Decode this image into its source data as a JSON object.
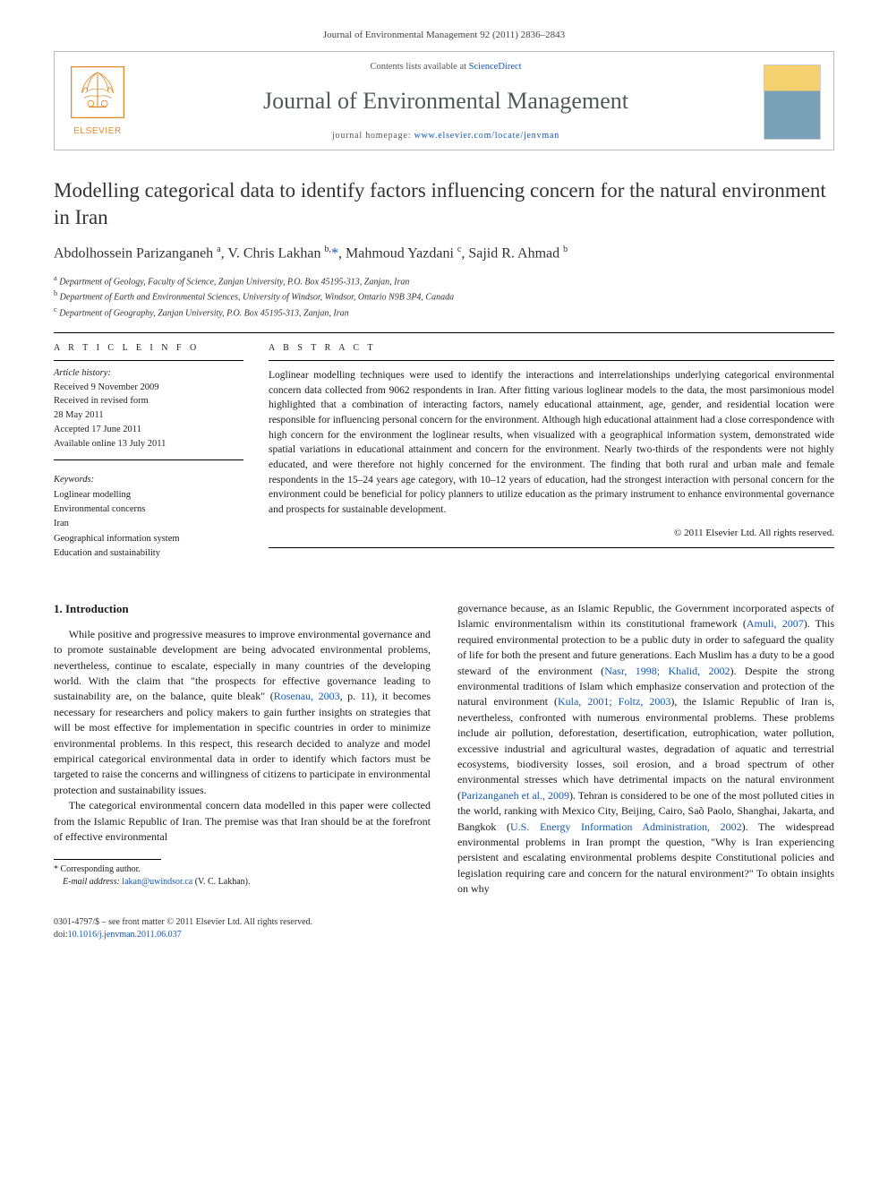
{
  "running_head": "Journal of Environmental Management 92 (2011) 2836–2843",
  "masthead": {
    "contents_prefix": "Contents lists available at ",
    "contents_link": "ScienceDirect",
    "journal_name": "Journal of Environmental Management",
    "homepage_prefix": "journal homepage: ",
    "homepage_url": "www.elsevier.com/locate/jenvman",
    "publisher_word": "ELSEVIER"
  },
  "title": "Modelling categorical data to identify factors influencing concern for the natural environment in Iran",
  "authors_html": "Abdolhossein Parizanganeh <sup>a</sup>, V. Chris Lakhan <sup>b,</sup><a href='#'>*</a>, Mahmoud Yazdani <sup>c</sup>, Sajid R. Ahmad <sup>b</sup>",
  "affiliations": [
    {
      "sup": "a",
      "text": "Department of Geology, Faculty of Science, Zanjan University, P.O. Box 45195-313, Zanjan, Iran"
    },
    {
      "sup": "b",
      "text": "Department of Earth and Environmental Sciences, University of Windsor, Windsor, Ontario N9B 3P4, Canada"
    },
    {
      "sup": "c",
      "text": "Department of Geography, Zanjan University, P.O. Box 45195-313, Zanjan, Iran"
    }
  ],
  "article_info": {
    "head": "A R T I C L E   I N F O",
    "history_label": "Article history:",
    "received": "Received 9 November 2009",
    "revised_label": "Received in revised form",
    "revised_date": "28 May 2011",
    "accepted": "Accepted 17 June 2011",
    "online": "Available online 13 July 2011",
    "keywords_head": "Keywords:",
    "keywords": [
      "Loglinear modelling",
      "Environmental concerns",
      "Iran",
      "Geographical information system",
      "Education and sustainability"
    ]
  },
  "abstract": {
    "head": "A B S T R A C T",
    "text": "Loglinear modelling techniques were used to identify the interactions and interrelationships underlying categorical environmental concern data collected from 9062 respondents in Iran. After fitting various loglinear models to the data, the most parsimonious model highlighted that a combination of interacting factors, namely educational attainment, age, gender, and residential location were responsible for influencing personal concern for the environment. Although high educational attainment had a close correspondence with high concern for the environment the loglinear results, when visualized with a geographical information system, demonstrated wide spatial variations in educational attainment and concern for the environment. Nearly two-thirds of the respondents were not highly educated, and were therefore not highly concerned for the environment. The finding that both rural and urban male and female respondents in the 15–24 years age category, with 10–12 years of education, had the strongest interaction with personal concern for the environment could be beneficial for policy planners to utilize education as the primary instrument to enhance environmental governance and prospects for sustainable development.",
    "copyright": "© 2011 Elsevier Ltd. All rights reserved."
  },
  "section1": {
    "heading": "1. Introduction",
    "p1": "While positive and progressive measures to improve environmental governance and to promote sustainable development are being advocated environmental problems, nevertheless, continue to escalate, especially in many countries of the developing world. With the claim that \"the prospects for effective governance leading to sustainability are, on the balance, quite bleak\" (",
    "p1_cite1": "Rosenau, 2003",
    "p1b": ", p. 11), it becomes necessary for researchers and policy makers to gain further insights on strategies that will be most effective for implementation in specific countries in order to minimize environmental problems. In this respect, this research decided to analyze and model empirical categorical environmental data in order to identify which factors must be targeted to raise the concerns and willingness of citizens to participate in environmental protection and sustainability issues.",
    "p2": "The categorical environmental concern data modelled in this paper were collected from the Islamic Republic of Iran. The premise was that Iran should be at the forefront of effective environmental",
    "p3a": "governance because, as an Islamic Republic, the Government incorporated aspects of Islamic environmentalism within its constitutional framework (",
    "p3_cite1": "Amuli, 2007",
    "p3b": "). This required environmental protection to be a public duty in order to safeguard the quality of life for both the present and future generations. Each Muslim has a duty to be a good steward of the environment (",
    "p3_cite2": "Nasr, 1998; Khalid, 2002",
    "p3c": "). Despite the strong environmental traditions of Islam which emphasize conservation and protection of the natural environment (",
    "p3_cite3": "Kula, 2001; Foltz, 2003",
    "p3d": "), the Islamic Republic of Iran is, nevertheless, confronted with numerous environmental problems. These problems include air pollution, deforestation, desertification, eutrophication, water pollution, excessive industrial and agricultural wastes, degradation of aquatic and terrestrial ecosystems, biodiversity losses, soil erosion, and a broad spectrum of other environmental stresses which have detrimental impacts on the natural environment (",
    "p3_cite4": "Parizanganeh et al., 2009",
    "p3e": "). Tehran is considered to be one of the most polluted cities in the world, ranking with Mexico City, Beijing, Cairo, Saõ Paolo, Shanghai, Jakarta, and Bangkok (",
    "p3_cite5": "U.S. Energy Information Administration, 2002",
    "p3f": "). The widespread environmental problems in Iran prompt the question, \"Why is Iran experiencing persistent and escalating environmental problems despite Constitutional policies and legislation requiring care and concern for the natural environment?\" To obtain insights on why"
  },
  "footnotes": {
    "corr": "* Corresponding author.",
    "email_label": "E-mail address: ",
    "email": "lakan@uwindsor.ca",
    "email_who": " (V. C. Lakhan)."
  },
  "bottom": {
    "left1": "0301-4797/$ – see front matter © 2011 Elsevier Ltd. All rights reserved.",
    "left2_label": "doi:",
    "left2_link": "10.1016/j.jenvman.2011.06.037"
  },
  "colors": {
    "link": "#1557b0",
    "elsevier_orange": "#e08a2c",
    "journal_name": "#4f5a55"
  }
}
